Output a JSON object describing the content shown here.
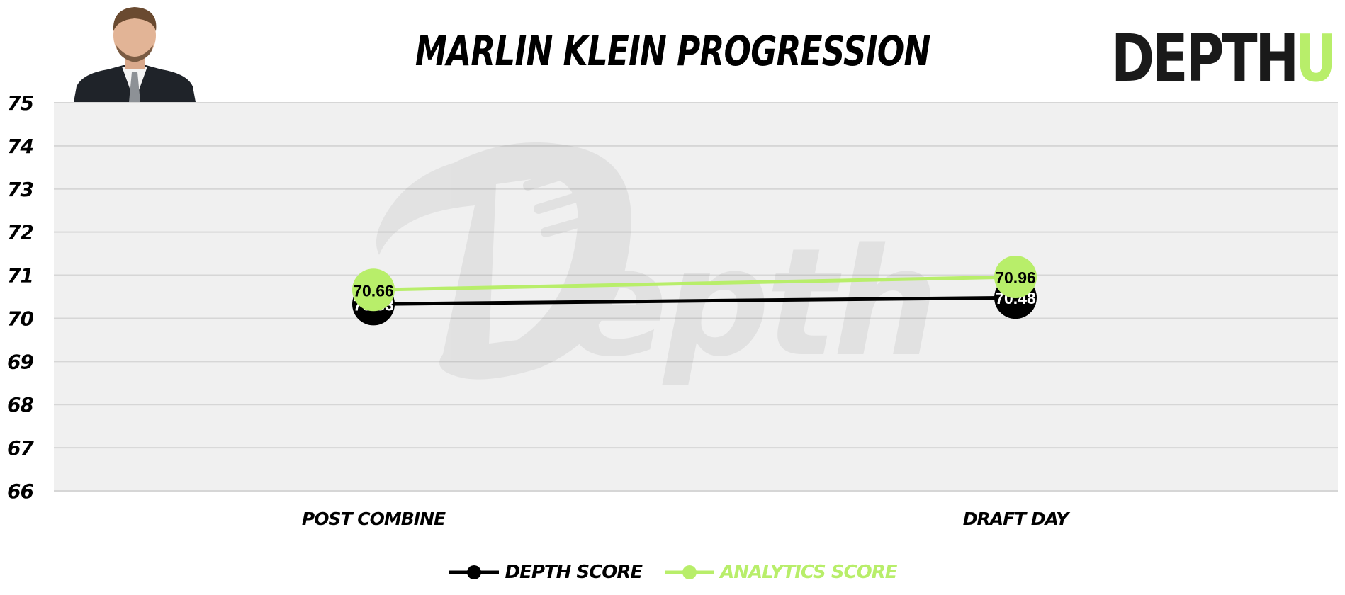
{
  "title": "MARLIN KLEIN PROGRESSION",
  "brand": {
    "text_main": "DEPTH",
    "text_accent": "U",
    "main_color": "#1a1a1a",
    "accent_color": "#b8ee6a"
  },
  "headshot": {
    "icon": "player-headshot"
  },
  "watermark": {
    "icon": "depth-football-logo-watermark"
  },
  "colors": {
    "depth": "#000000",
    "analytics": "#b8ee6a",
    "plot_bg": "#f0f0f0",
    "grid": "#d6d6d6"
  },
  "chart_data": {
    "type": "line",
    "title": "MARLIN KLEIN PROGRESSION",
    "categories": [
      "POST COMBINE",
      "DRAFT DAY"
    ],
    "series": [
      {
        "name": "DEPTH SCORE",
        "values": [
          70.33,
          70.48
        ],
        "labels": [
          "70.33",
          "70.48"
        ],
        "color": "#000000"
      },
      {
        "name": "ANALYTICS SCORE",
        "values": [
          70.66,
          70.96
        ],
        "labels": [
          "70.66",
          "70.96"
        ],
        "color": "#b8ee6a"
      }
    ],
    "ylim": [
      66,
      75
    ],
    "yticks": [
      "66",
      "67",
      "68",
      "69",
      "70",
      "71",
      "72",
      "73",
      "74",
      "75"
    ],
    "grid": true,
    "legend_position": "bottom-center"
  }
}
